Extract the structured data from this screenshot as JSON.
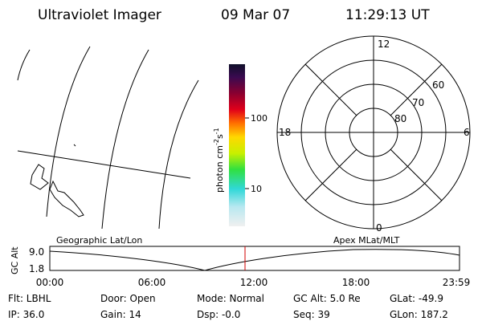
{
  "header": {
    "title": "Ultraviolet Imager",
    "date": "09 Mar 07",
    "time": "11:29:13 UT"
  },
  "colorbar": {
    "label": {
      "text": "photon cm",
      "exp1": "-2",
      "unit2": "s",
      "exp2": "-1"
    },
    "ticks": [
      "100",
      "10"
    ]
  },
  "polar": {
    "mlt_labels": [
      "12",
      "18",
      "6",
      "0"
    ],
    "mlat_labels": [
      "60",
      "70",
      "80"
    ]
  },
  "altitude_plot": {
    "left_title": "Geographic Lat/Lon",
    "right_title": "Apex MLat/MLT",
    "y_label": "GC Alt",
    "y_ticks": [
      "9.0",
      "1.8"
    ],
    "x_ticks": [
      "00:00",
      "06:00",
      "12:00",
      "18:00",
      "23:59"
    ]
  },
  "status": {
    "rows": [
      [
        "Flt: LBHL",
        "Door: Open",
        "Mode: Normal",
        "GC Alt: 5.0 Re",
        "GLat: -49.9"
      ],
      [
        "IP: 36.0",
        "Gain: 14",
        "Dsp: -0.0",
        "Seq: 39",
        "GLon: 187.2"
      ]
    ]
  }
}
